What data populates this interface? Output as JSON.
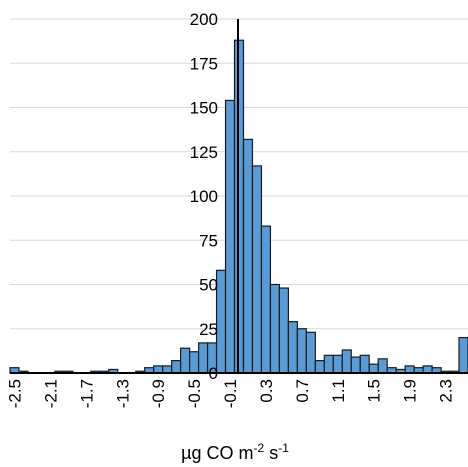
{
  "chart_data": {
    "type": "bar",
    "xlabel": "µg CO m",
    "xlabel_parts": {
      "base": "µg CO m",
      "exp1": "-2",
      "mid": " s",
      "exp2": "-1"
    },
    "ylim": [
      0,
      200
    ],
    "yticks": [
      25,
      50,
      75,
      100,
      125,
      150,
      175,
      200
    ],
    "xtick_labels": [
      "-2.5",
      "-2.1",
      "-1.7",
      "-1.3",
      "-0.9",
      "-0.5",
      "-0.1",
      "0.3",
      "0.7",
      "1.1",
      "1.5",
      "1.9",
      "2.3"
    ],
    "grid": true,
    "bin_width": 0.1,
    "bins_start": -2.55,
    "values": [
      3,
      1,
      0,
      0,
      0,
      1,
      1,
      0,
      0,
      1,
      1,
      2,
      0,
      0,
      1,
      3,
      4,
      4,
      7,
      14,
      12,
      17,
      17,
      58,
      154,
      188,
      132,
      117,
      83,
      50,
      48,
      29,
      25,
      23,
      7,
      10,
      10,
      13,
      9,
      10,
      5,
      8,
      3,
      2,
      4,
      3,
      4,
      3,
      1,
      1,
      20
    ]
  },
  "colors": {
    "bar": "#5b9bd5",
    "grid": "#d9d9d9"
  }
}
